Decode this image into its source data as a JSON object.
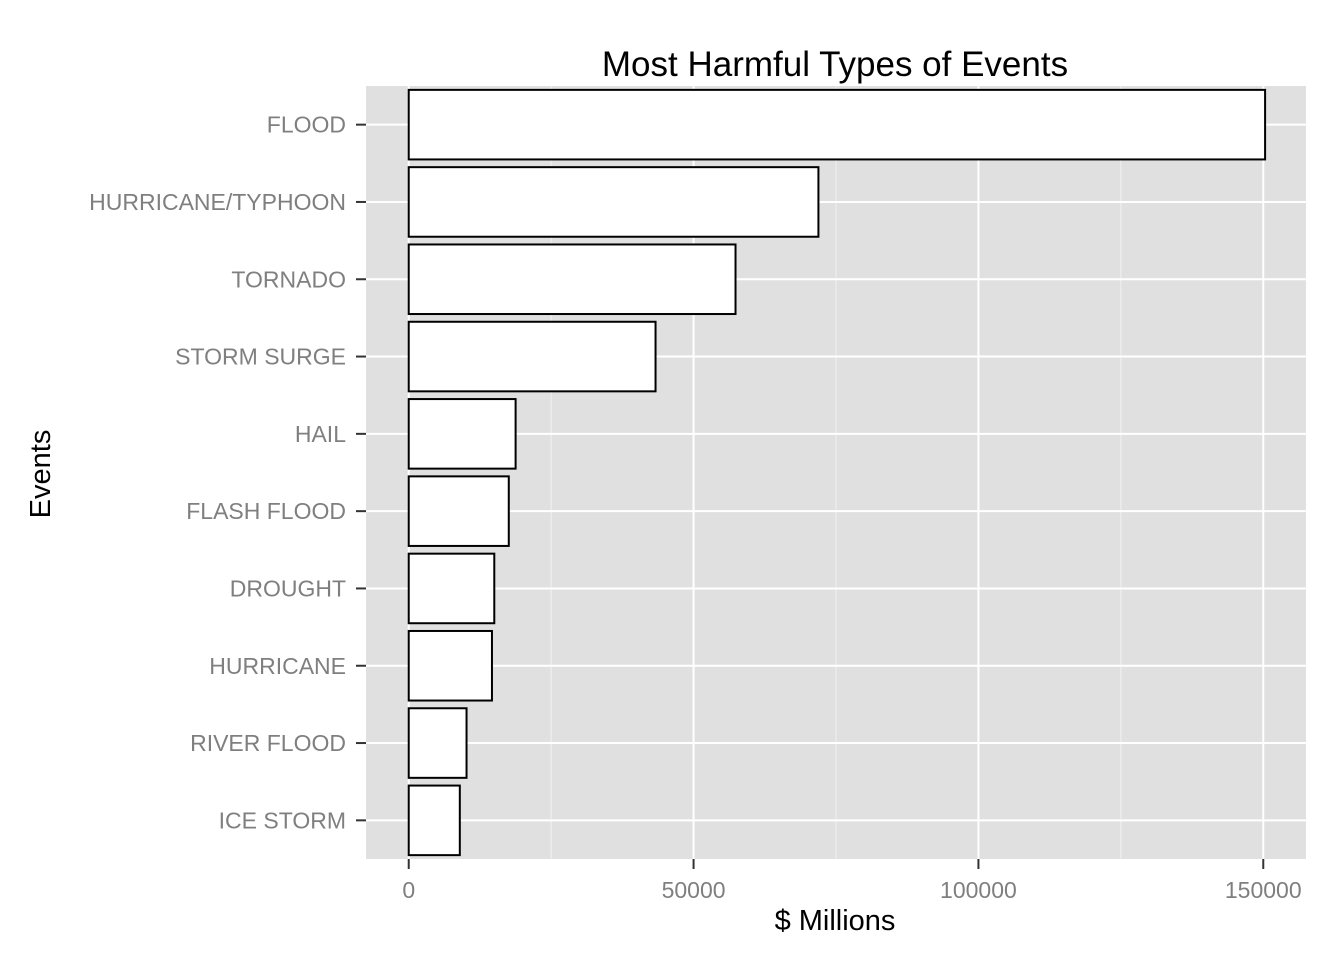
{
  "chart_data": {
    "type": "bar",
    "orientation": "horizontal",
    "title": "Most Harmful Types of Events",
    "xlabel": "$ Millions",
    "ylabel": "Events",
    "categories": [
      "FLOOD",
      "HURRICANE/TYPHOON",
      "TORNADO",
      "STORM SURGE",
      "HAIL",
      "FLASH FLOOD",
      "DROUGHT",
      "HURRICANE",
      "RIVER FLOOD",
      "ICE STORM"
    ],
    "values": [
      150320,
      71914,
      57362,
      43324,
      18761,
      17562,
      15019,
      14610,
      10148,
      8967
    ],
    "xlim": [
      -7500,
      157500
    ],
    "xticks": [
      0,
      50000,
      100000,
      150000
    ],
    "xtick_labels": [
      "0",
      "50000",
      "100000",
      "150000"
    ],
    "grid": true,
    "legend": "none",
    "colors": {
      "panel_background": "#e0e0e0",
      "grid": "#ffffff",
      "bar_fill": "#ffffff",
      "bar_outline": "#000000",
      "tick_text": "#7f7f7f"
    }
  }
}
